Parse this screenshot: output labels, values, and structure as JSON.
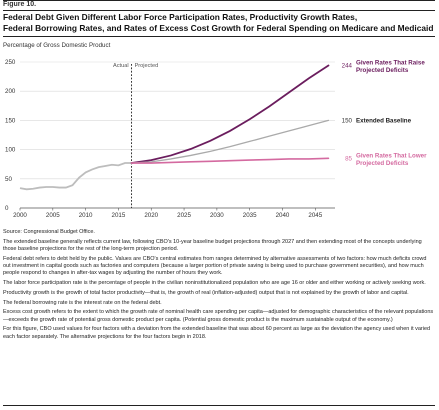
{
  "figure_label": "Figure 10.",
  "title_lines": [
    "Federal Debt Given Different Labor Force Participation Rates, Productivity Growth Rates,",
    "Federal Borrowing Rates, and Rates of Excess Cost Growth for Federal Spending on Medicare and Medicaid"
  ],
  "colors": {
    "upper": "#6b1d5e",
    "baseline": "#aaaaaa",
    "lower": "#d46aa0",
    "historical": "#bdbdbd",
    "actual_line": "#222222"
  },
  "chart_data": {
    "type": "line",
    "ylabel": "Percentage of Gross Domestic Product",
    "ylim": [
      0,
      250
    ],
    "yticks": [
      0,
      50,
      100,
      150,
      200,
      250
    ],
    "xlim": [
      2000,
      2048
    ],
    "xticks": [
      2000,
      2005,
      2010,
      2015,
      2020,
      2025,
      2030,
      2035,
      2040,
      2045
    ],
    "divider_year": 2017,
    "region_labels": {
      "actual": "Actual",
      "projected": "Projected"
    },
    "historical": {
      "x": [
        2000,
        2001,
        2002,
        2003,
        2004,
        2005,
        2006,
        2007,
        2008,
        2009,
        2010,
        2011,
        2012,
        2013,
        2014,
        2015,
        2016,
        2017
      ],
      "y": [
        34,
        32,
        33,
        35,
        36,
        36,
        35,
        35,
        39,
        52,
        61,
        66,
        70,
        72,
        74,
        73,
        77,
        77
      ]
    },
    "series": [
      {
        "name": "Given Rates That Raise Projected Deficits",
        "end_value": "244",
        "label_lines": [
          "Given Rates That Raise",
          "Projected Deficits"
        ],
        "x": [
          2017,
          2020,
          2023,
          2026,
          2029,
          2032,
          2035,
          2038,
          2041,
          2044,
          2047
        ],
        "y": [
          77,
          82,
          90,
          101,
          115,
          132,
          152,
          174,
          198,
          222,
          244
        ]
      },
      {
        "name": "Extended Baseline",
        "end_value": "150",
        "label_lines": [
          "Extended Baseline"
        ],
        "x": [
          2017,
          2020,
          2023,
          2026,
          2029,
          2032,
          2035,
          2038,
          2041,
          2044,
          2047
        ],
        "y": [
          77,
          79,
          84,
          90,
          97,
          105,
          114,
          123,
          132,
          141,
          150
        ]
      },
      {
        "name": "Given Rates That Lower Projected Deficits",
        "end_value": "85",
        "label_lines": [
          "Given Rates That Lower",
          "Projected Deficits"
        ],
        "x": [
          2017,
          2020,
          2023,
          2026,
          2029,
          2032,
          2035,
          2038,
          2041,
          2044,
          2047
        ],
        "y": [
          77,
          77,
          78,
          79,
          80,
          81,
          82,
          83,
          84,
          84,
          85
        ]
      }
    ]
  },
  "notes": [
    "Source: Congressional Budget Office.",
    "The extended baseline generally reflects current law, following CBO's 10-year baseline budget projections through 2027 and then extending most of the concepts underlying those baseline projections for the rest of the long-term projection period.",
    "Federal debt refers to debt held by the public. Values are CBO's central estimates from ranges determined by alternative assessments of two factors: how much deficits crowd out investment in capital goods such as factories and computers (because a larger portion of private saving is being used to purchase government securities), and how much people respond to changes in after-tax wages by adjusting the number of hours they work.",
    "The labor force participation rate is the percentage of people in the civilian noninstitutionalized population who are age 16 or older and either working or actively seeking work.",
    "Productivity growth is the growth of total factor productivity—that is, the growth of real (inflation-adjusted) output that is not explained by the growth of labor and capital.",
    "The federal borrowing rate is the interest rate on the federal debt.",
    "Excess cost growth refers to the extent to which the growth rate of nominal health care spending per capita—adjusted for demographic characteristics of the relevant populations—exceeds the growth rate of potential gross domestic product per capita. (Potential gross domestic product is the maximum sustainable output of the economy.)",
    "For this figure, CBO used values for four factors with a deviation from the extended baseline that was about 60 percent as large as the deviation the agency used when it varied each factor separately. The alternative projections for the four factors begin in 2018."
  ]
}
